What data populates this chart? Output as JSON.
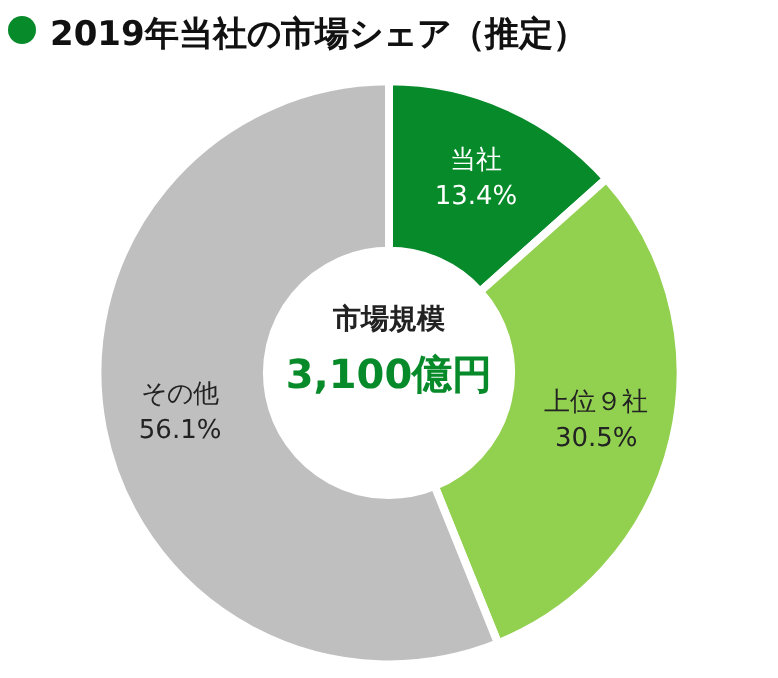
{
  "chart_data": {
    "type": "donut",
    "title": "2019年当社の市場シェア（推定）",
    "categories": [
      "当社",
      "上位９社",
      "その他"
    ],
    "values": [
      13.4,
      30.5,
      56.1
    ],
    "value_labels": [
      "13.4%",
      "30.5%",
      "56.1%"
    ],
    "colors": [
      "#078a2a",
      "#92d050",
      "#bfbfbf"
    ],
    "annotations": [
      "市場規模",
      "3,100億円"
    ],
    "legend": false
  }
}
